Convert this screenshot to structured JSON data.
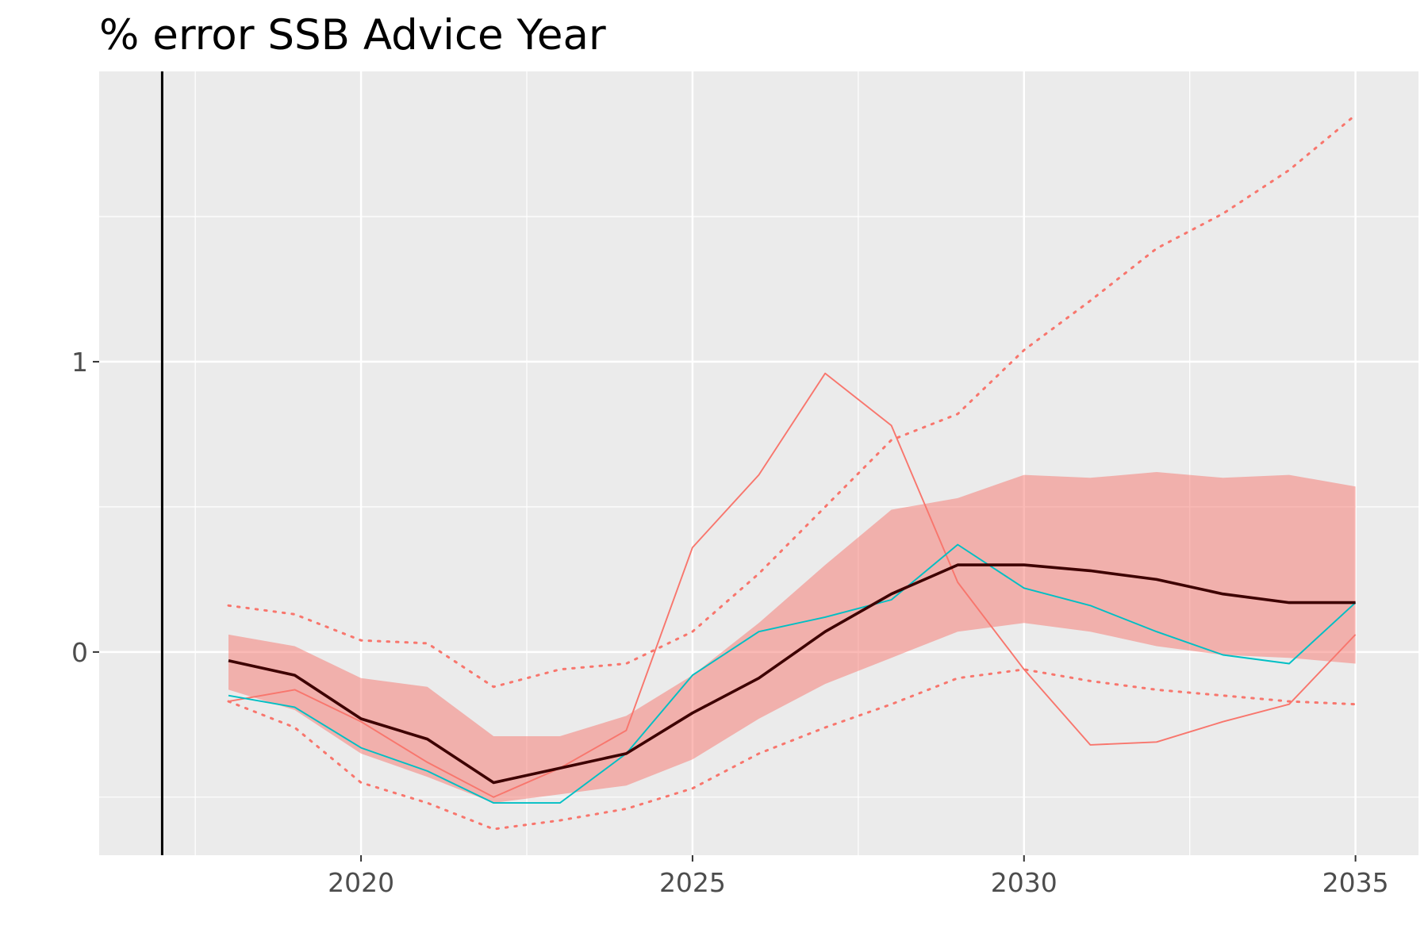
{
  "chart_data": {
    "type": "line",
    "title": "% error SSB Advice Year",
    "xlabel": "",
    "ylabel": "",
    "xlim": [
      2016.05,
      2035.95
    ],
    "ylim": [
      -0.7,
      2.0
    ],
    "x_ticks": [
      2020,
      2025,
      2030,
      2035
    ],
    "x_tick_labels": [
      "2020",
      "2025",
      "2030",
      "2035"
    ],
    "y_ticks": [
      0,
      1
    ],
    "y_tick_labels": [
      "0",
      "1"
    ],
    "grid": true,
    "legend": "none",
    "vline_x": 2017,
    "x": [
      2018,
      2019,
      2020,
      2021,
      2022,
      2023,
      2024,
      2025,
      2026,
      2027,
      2028,
      2029,
      2030,
      2031,
      2032,
      2033,
      2034,
      2035
    ],
    "band": {
      "lower": [
        -0.13,
        -0.2,
        -0.35,
        -0.43,
        -0.52,
        -0.49,
        -0.46,
        -0.37,
        -0.23,
        -0.11,
        -0.02,
        0.07,
        0.1,
        0.07,
        0.02,
        -0.01,
        -0.02,
        -0.04
      ],
      "upper": [
        0.06,
        0.02,
        -0.09,
        -0.12,
        -0.29,
        -0.29,
        -0.22,
        -0.08,
        0.1,
        0.3,
        0.49,
        0.53,
        0.61,
        0.6,
        0.62,
        0.6,
        0.61,
        0.57
      ],
      "color": "#F8766D"
    },
    "series": [
      {
        "values": [
          -0.03,
          -0.08,
          -0.23,
          -0.3,
          -0.45,
          -0.4,
          -0.35,
          -0.21,
          -0.09,
          0.07,
          0.2,
          0.3,
          0.3,
          0.28,
          0.25,
          0.2,
          0.17,
          0.17
        ],
        "color": "#3d0000",
        "style": "solid",
        "weight": "thick"
      },
      {
        "values": [
          -0.17,
          -0.13,
          -0.24,
          -0.38,
          -0.5,
          -0.4,
          -0.27,
          0.36,
          0.61,
          0.96,
          0.78,
          0.24,
          -0.06,
          -0.32,
          -0.31,
          -0.24,
          -0.18,
          0.06
        ],
        "color": "#F8766D",
        "style": "solid",
        "weight": "thin"
      },
      {
        "values": [
          -0.15,
          -0.19,
          -0.33,
          -0.41,
          -0.52,
          -0.52,
          -0.35,
          -0.08,
          0.07,
          0.12,
          0.18,
          0.37,
          0.22,
          0.16,
          0.07,
          -0.01,
          -0.04,
          0.17
        ],
        "color": "#00BFC4",
        "style": "solid",
        "weight": "thin"
      },
      {
        "values": [
          0.16,
          0.13,
          0.04,
          0.03,
          -0.12,
          -0.06,
          -0.04,
          0.07,
          0.27,
          0.5,
          0.73,
          0.82,
          1.04,
          1.21,
          1.39,
          1.51,
          1.66,
          1.85
        ],
        "color": "#F8766D",
        "style": "dotted",
        "weight": "thin"
      },
      {
        "values": [
          -0.17,
          -0.26,
          -0.45,
          -0.52,
          -0.61,
          -0.58,
          -0.54,
          -0.47,
          -0.35,
          -0.26,
          -0.18,
          -0.09,
          -0.06,
          -0.1,
          -0.13,
          -0.15,
          -0.17,
          -0.18
        ],
        "color": "#F8766D",
        "style": "dotted",
        "weight": "thin"
      }
    ]
  }
}
